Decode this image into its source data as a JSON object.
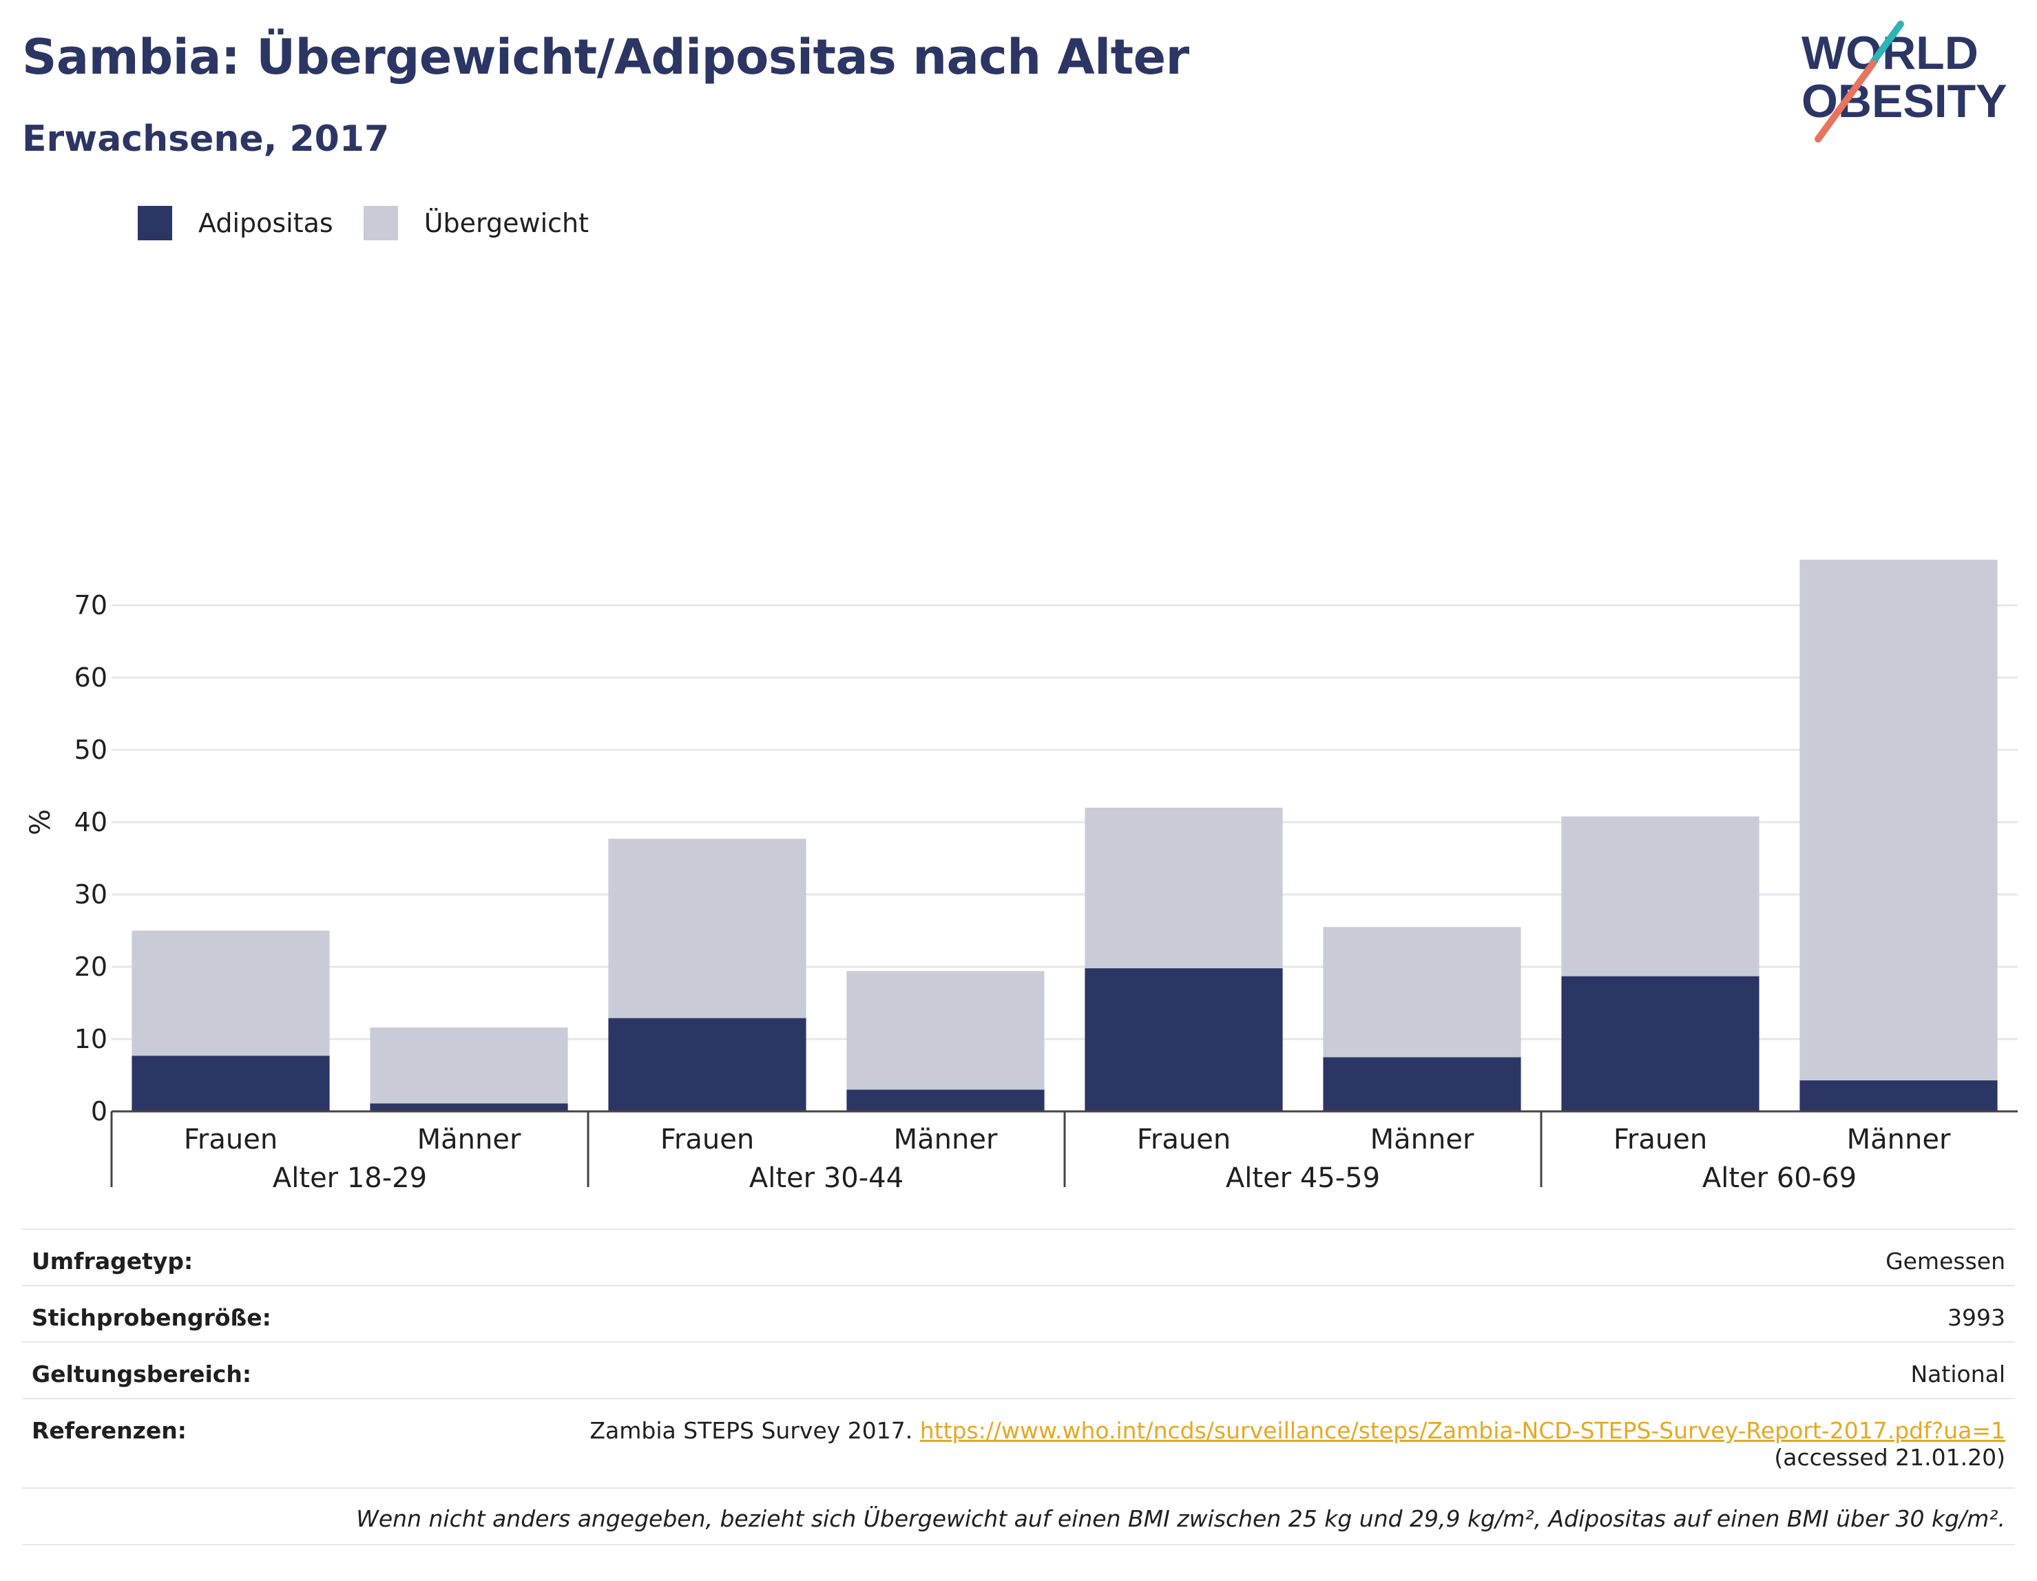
{
  "title": "Sambia: Übergewicht/Adipositas nach Alter",
  "subtitle": "Erwachsene, 2017",
  "logo": {
    "line1": "WORLD",
    "line2": "OBESITY"
  },
  "legend": [
    {
      "label": "Adipositas",
      "color": "#2b3664"
    },
    {
      "label": "Übergewicht",
      "color": "#c9cbd7"
    }
  ],
  "chart_data": {
    "type": "bar",
    "stacked": true,
    "ylabel": "%",
    "ylim": [
      0,
      80
    ],
    "yticks": [
      0,
      10,
      20,
      30,
      40,
      50,
      60,
      70
    ],
    "grid": true,
    "legend_position": "top-left",
    "groups": [
      "Alter 18-29",
      "Alter 30-44",
      "Alter 45-59",
      "Alter 60-69"
    ],
    "categories": [
      "Frauen",
      "Männer",
      "Frauen",
      "Männer",
      "Frauen",
      "Männer",
      "Frauen",
      "Männer"
    ],
    "series": [
      {
        "name": "Adipositas",
        "color": "#2b3664",
        "values": [
          7.7,
          1.1,
          12.9,
          3.0,
          19.8,
          7.5,
          18.7,
          4.3
        ]
      },
      {
        "name": "Übergewicht",
        "color": "#c9cbd7",
        "values": [
          17.3,
          10.5,
          24.8,
          16.4,
          22.2,
          18.0,
          22.1,
          72.0
        ]
      }
    ]
  },
  "info": {
    "survey_type": {
      "label": "Umfragetyp:",
      "value": "Gemessen"
    },
    "sample_size": {
      "label": "Stichprobengröße:",
      "value": "3993"
    },
    "coverage": {
      "label": "Geltungsbereich:",
      "value": "National"
    },
    "references": {
      "label": "Referenzen:",
      "text": "Zambia STEPS Survey 2017. ",
      "link": "https://www.who.int/ncds/surveillance/steps/Zambia-NCD-STEPS-Survey-Report-2017.pdf?ua=1",
      "accessed": "(accessed 21.01.20)"
    }
  },
  "footnote": "Wenn nicht anders angegeben, bezieht sich Übergewicht auf einen BMI zwischen 25 kg und 29,9 kg/m², Adipositas auf einen BMI über 30 kg/m²."
}
